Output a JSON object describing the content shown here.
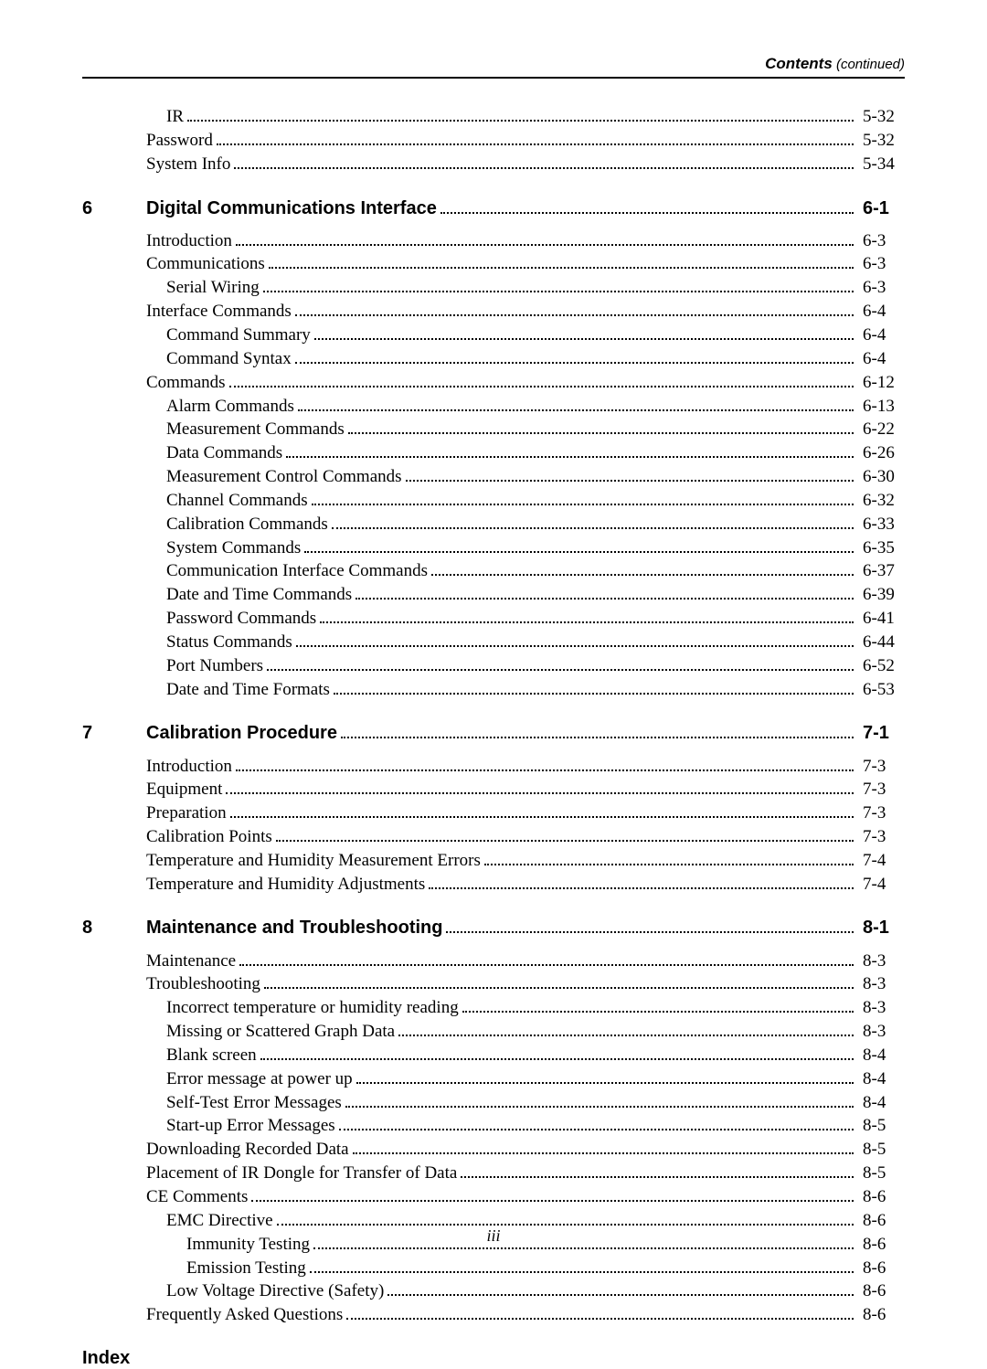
{
  "header": {
    "title": "Contents",
    "subtitle": " (continued)"
  },
  "orphan_entries": [
    {
      "label": "IR",
      "page": "5-32",
      "indent": 1
    },
    {
      "label": "Password",
      "page": "5-32",
      "indent": 0
    },
    {
      "label": "System Info",
      "page": "5-34",
      "indent": 0
    }
  ],
  "chapters": [
    {
      "num": "6",
      "title": "Digital Communications Interface",
      "page": "6-1",
      "entries": [
        {
          "label": "Introduction",
          "page": "6-3",
          "indent": 0
        },
        {
          "label": "Communications",
          "page": "6-3",
          "indent": 0
        },
        {
          "label": "Serial Wiring",
          "page": "6-3",
          "indent": 1
        },
        {
          "label": "Interface Commands",
          "page": "6-4",
          "indent": 0
        },
        {
          "label": "Command Summary",
          "page": "6-4",
          "indent": 1
        },
        {
          "label": "Command Syntax",
          "page": "6-4",
          "indent": 1
        },
        {
          "label": "Commands",
          "page": "6-12",
          "indent": 0
        },
        {
          "label": "Alarm Commands",
          "page": "6-13",
          "indent": 1
        },
        {
          "label": "Measurement Commands",
          "page": "6-22",
          "indent": 1
        },
        {
          "label": "Data Commands",
          "page": "6-26",
          "indent": 1
        },
        {
          "label": "Measurement Control Commands",
          "page": "6-30",
          "indent": 1
        },
        {
          "label": "Channel Commands",
          "page": "6-32",
          "indent": 1
        },
        {
          "label": "Calibration Commands",
          "page": "6-33",
          "indent": 1
        },
        {
          "label": "System Commands",
          "page": "6-35",
          "indent": 1
        },
        {
          "label": "Communication Interface Commands",
          "page": "6-37",
          "indent": 1
        },
        {
          "label": "Date and Time Commands",
          "page": "6-39",
          "indent": 1
        },
        {
          "label": "Password Commands",
          "page": "6-41",
          "indent": 1
        },
        {
          "label": "Status Commands",
          "page": "6-44",
          "indent": 1
        },
        {
          "label": "Port Numbers",
          "page": "6-52",
          "indent": 1
        },
        {
          "label": "Date and Time Formats",
          "page": "6-53",
          "indent": 1
        }
      ]
    },
    {
      "num": "7",
      "title": "Calibration Procedure",
      "page": "7-1",
      "entries": [
        {
          "label": "Introduction",
          "page": "7-3",
          "indent": 0
        },
        {
          "label": "Equipment",
          "page": "7-3",
          "indent": 0
        },
        {
          "label": "Preparation",
          "page": "7-3",
          "indent": 0
        },
        {
          "label": "Calibration Points",
          "page": "7-3",
          "indent": 0
        },
        {
          "label": "Temperature and Humidity Measurement Errors",
          "page": "7-4",
          "indent": 0
        },
        {
          "label": "Temperature and Humidity Adjustments",
          "page": "7-4",
          "indent": 0
        }
      ]
    },
    {
      "num": "8",
      "title": "Maintenance and Troubleshooting",
      "page": "8-1",
      "entries": [
        {
          "label": "Maintenance",
          "page": "8-3",
          "indent": 0
        },
        {
          "label": "Troubleshooting",
          "page": "8-3",
          "indent": 0
        },
        {
          "label": "Incorrect temperature or humidity reading",
          "page": "8-3",
          "indent": 1
        },
        {
          "label": "Missing or Scattered Graph Data",
          "page": "8-3",
          "indent": 1
        },
        {
          "label": "Blank screen",
          "page": "8-4",
          "indent": 1
        },
        {
          "label": "Error message at power up",
          "page": "8-4",
          "indent": 1
        },
        {
          "label": "Self-Test Error Messages",
          "page": "8-4",
          "indent": 1
        },
        {
          "label": "Start-up Error Messages",
          "page": "8-5",
          "indent": 1
        },
        {
          "label": "Downloading Recorded Data",
          "page": "8-5",
          "indent": 0
        },
        {
          "label": "Placement of IR Dongle for Transfer of Data",
          "page": "8-5",
          "indent": 0
        },
        {
          "label": "CE Comments",
          "page": "8-6",
          "indent": 0
        },
        {
          "label": "EMC Directive",
          "page": "8-6",
          "indent": 1
        },
        {
          "label": "Immunity Testing",
          "page": "8-6",
          "indent": 2
        },
        {
          "label": "Emission Testing",
          "page": "8-6",
          "indent": 2
        },
        {
          "label": "Low Voltage Directive (Safety)",
          "page": "8-6",
          "indent": 1
        },
        {
          "label": "Frequently Asked Questions",
          "page": "8-6",
          "indent": 0
        }
      ]
    }
  ],
  "index_label": "Index",
  "page_number": "iii"
}
